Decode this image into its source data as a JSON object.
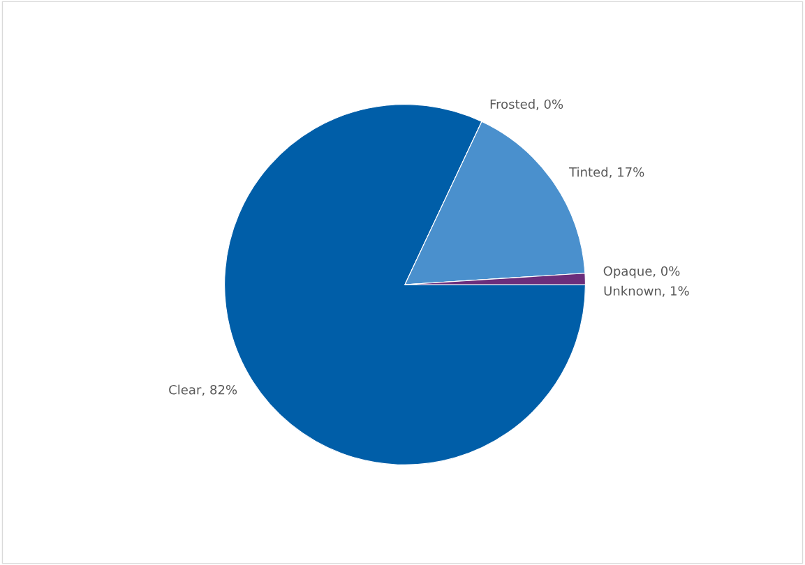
{
  "chart_data": {
    "type": "pie",
    "categories": [
      "Clear",
      "Frosted",
      "Tinted",
      "Opaque",
      "Unknown"
    ],
    "values": [
      82,
      0,
      17,
      0,
      1
    ],
    "colors": [
      "#005ea8",
      "#a5a5a5",
      "#4a90cd",
      "#f2c99b",
      "#6b2d7b"
    ],
    "value_labels": [
      ", 82%",
      ", 0%",
      ", 17%",
      ", 0%",
      ", 1%"
    ]
  }
}
